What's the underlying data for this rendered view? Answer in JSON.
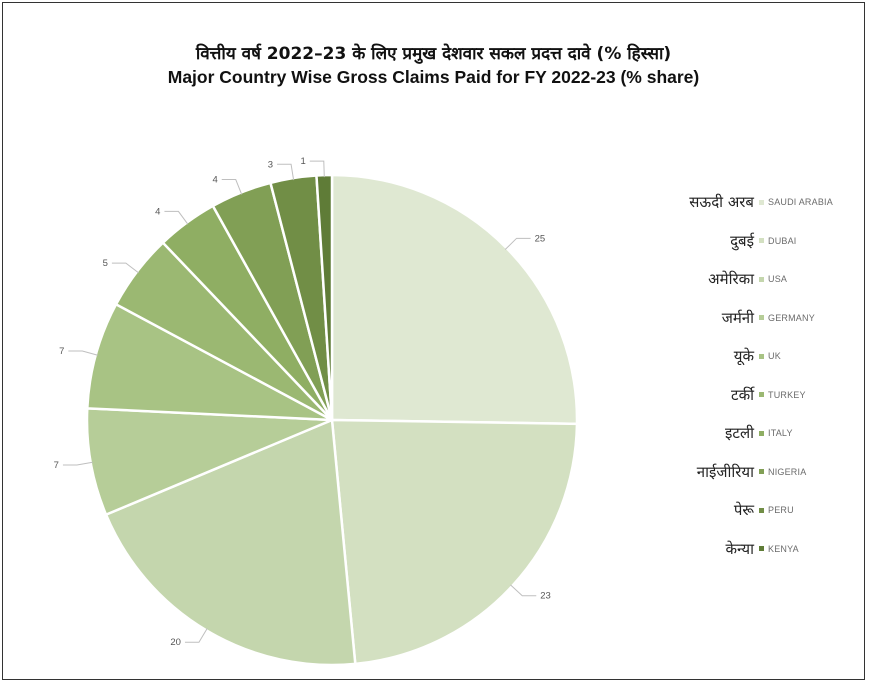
{
  "chart_data": {
    "type": "pie",
    "title_hi": "वित्तीय वर्ष 2022–23 के लिए प्रमुख देशवार सकल प्रदत्त दावे (% हिस्सा)",
    "title": "Major Country Wise Gross Claims Paid for FY 2022-23 (% share)",
    "legend_position": "right",
    "slices": [
      {
        "label_hi": "सऊदी अरब",
        "label": "SAUDI ARABIA",
        "value": 25,
        "color": "#dfe8d2"
      },
      {
        "label_hi": "दुबई",
        "label": "DUBAI",
        "value": 23,
        "color": "#d3e0c1"
      },
      {
        "label_hi": "अमेरिका",
        "label": "USA",
        "value": 20,
        "color": "#c4d6ad"
      },
      {
        "label_hi": "जर्मनी",
        "label": "GERMANY",
        "value": 7,
        "color": "#b6cd98"
      },
      {
        "label_hi": "यूके",
        "label": "UK",
        "value": 7,
        "color": "#a8c384"
      },
      {
        "label_hi": "टर्की",
        "label": "TURKEY",
        "value": 5,
        "color": "#9bb872"
      },
      {
        "label_hi": "इटली",
        "label": "ITALY",
        "value": 4,
        "color": "#8fae63"
      },
      {
        "label_hi": "नाईजीरिया",
        "label": "NIGERIA",
        "value": 4,
        "color": "#819f55"
      },
      {
        "label_hi": "पेरू",
        "label": "PERU",
        "value": 3,
        "color": "#718e46"
      },
      {
        "label_hi": "केन्या",
        "label": "KENYA",
        "value": 1,
        "color": "#5f7c37"
      }
    ]
  }
}
